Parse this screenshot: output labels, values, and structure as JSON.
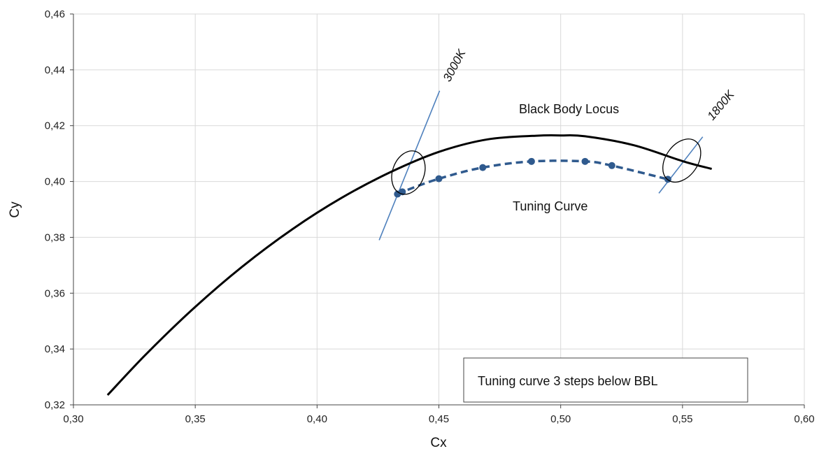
{
  "chart_data": {
    "type": "line",
    "xlabel": "Cx",
    "ylabel": "Cy",
    "xlim": [
      0.3,
      0.6
    ],
    "ylim": [
      0.32,
      0.46
    ],
    "x_ticks": [
      0.3,
      0.35,
      0.4,
      0.45,
      0.5,
      0.55,
      0.6
    ],
    "y_ticks": [
      0.32,
      0.34,
      0.36,
      0.38,
      0.4,
      0.42,
      0.44,
      0.46
    ],
    "x_tick_labels": [
      "0,30",
      "0,35",
      "0,40",
      "0,45",
      "0,50",
      "0,55",
      "0,60"
    ],
    "y_tick_labels": [
      "0,32",
      "0,34",
      "0,36",
      "0,38",
      "0,40",
      "0,42",
      "0,44",
      "0,46"
    ],
    "grid": true,
    "colors": {
      "locus": "#000000",
      "tuning": "#2f5a8e",
      "isotherm": "#4f81bd",
      "grid": "#d9d9d9"
    },
    "series": [
      {
        "name": "Black Body Locus",
        "style": "solid",
        "x": [
          0.314,
          0.33,
          0.35,
          0.37,
          0.39,
          0.41,
          0.43,
          0.45,
          0.47,
          0.49,
          0.5,
          0.51,
          0.53,
          0.55,
          0.562
        ],
        "y": [
          0.3235,
          0.3383,
          0.3551,
          0.37,
          0.383,
          0.3941,
          0.4033,
          0.4106,
          0.4151,
          0.4164,
          0.4165,
          0.4162,
          0.413,
          0.4073,
          0.4045
        ]
      },
      {
        "name": "Tuning Curve",
        "style": "dashed",
        "markers": true,
        "x": [
          0.433,
          0.435,
          0.45,
          0.468,
          0.488,
          0.51,
          0.521,
          0.544
        ],
        "y": [
          0.3955,
          0.3963,
          0.401,
          0.405,
          0.4072,
          0.4072,
          0.4057,
          0.4008
        ]
      }
    ],
    "isotherms": [
      {
        "label": "3000K",
        "x": [
          0.4255,
          0.4503
        ],
        "y": [
          0.379,
          0.4325
        ]
      },
      {
        "label": "1800K",
        "x": [
          0.5403,
          0.5583
        ],
        "y": [
          0.3958,
          0.416
        ]
      }
    ],
    "ellipses": [
      {
        "cx": 0.4375,
        "cy": 0.4032,
        "rx": 0.0065,
        "ry": 0.008,
        "angle": 20
      },
      {
        "cx": 0.5497,
        "cy": 0.4075,
        "rx": 0.0066,
        "ry": 0.0085,
        "angle": 35
      }
    ],
    "annotations": {
      "locus_label": "Black Body Locus",
      "tuning_label": "Tuning Curve",
      "box_text": "Tuning curve 3 steps below BBL",
      "iso_3000": "3000K",
      "iso_1800": "1800K"
    }
  }
}
